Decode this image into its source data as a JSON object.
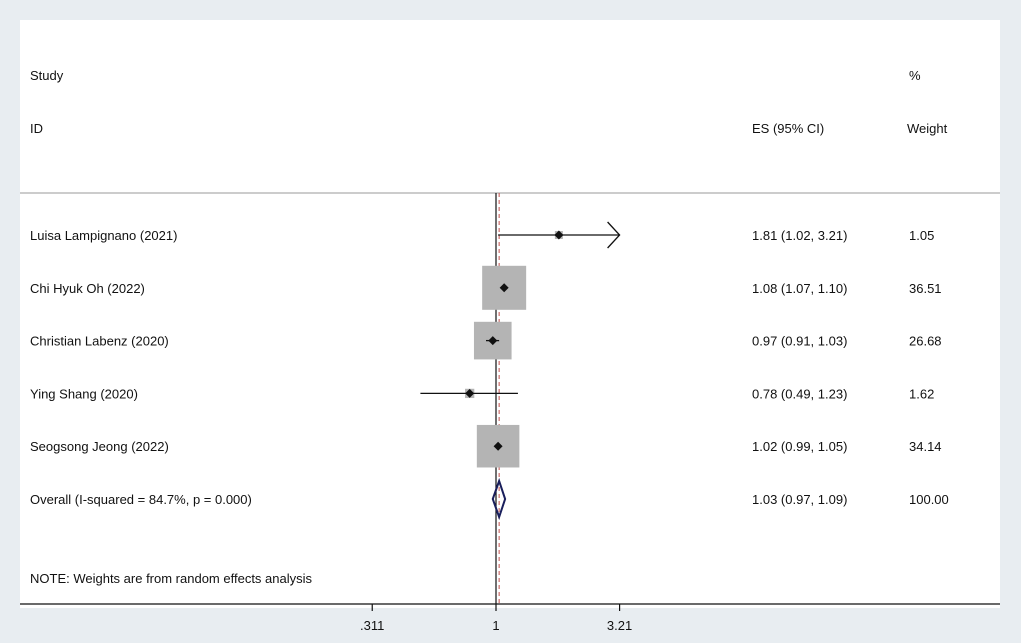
{
  "header": {
    "study_label": "Study",
    "id_label": "ID",
    "es_label": "ES (95% CI)",
    "pct_label": "%",
    "weight_label": "Weight"
  },
  "note": "NOTE: Weights are from random effects analysis",
  "chart_data": {
    "type": "forest",
    "x_scale": "log",
    "xticks": [
      ".311",
      "1",
      "3.21"
    ],
    "xtick_values": [
      0.311,
      1,
      3.21
    ],
    "null_value": 1,
    "overall_line": 1.03,
    "studies": [
      {
        "label": "Luisa Lampignano (2021)",
        "es": 1.81,
        "lo": 1.02,
        "hi": 3.21,
        "ci_text": "1.81 (1.02, 3.21)",
        "weight": 1.05,
        "weight_text": "1.05",
        "arrow": true
      },
      {
        "label": "Chi Hyuk Oh (2022)",
        "es": 1.08,
        "lo": 1.07,
        "hi": 1.1,
        "ci_text": "1.08 (1.07, 1.10)",
        "weight": 36.51,
        "weight_text": "36.51",
        "arrow": false
      },
      {
        "label": "Christian Labenz (2020)",
        "es": 0.97,
        "lo": 0.91,
        "hi": 1.03,
        "ci_text": "0.97 (0.91, 1.03)",
        "weight": 26.68,
        "weight_text": "26.68",
        "arrow": false
      },
      {
        "label": "Ying Shang (2020)",
        "es": 0.78,
        "lo": 0.49,
        "hi": 1.23,
        "ci_text": "0.78 (0.49, 1.23)",
        "weight": 1.62,
        "weight_text": "1.62",
        "arrow": false
      },
      {
        "label": "Seogsong Jeong (2022)",
        "es": 1.02,
        "lo": 0.99,
        "hi": 1.05,
        "ci_text": "1.02 (0.99, 1.05)",
        "weight": 34.14,
        "weight_text": "34.14",
        "arrow": false
      }
    ],
    "overall": {
      "label": "Overall  (I-squared = 84.7%, p = 0.000)",
      "es": 1.03,
      "lo": 0.97,
      "hi": 1.09,
      "ci_text": "1.03 (0.97, 1.09)",
      "weight_text": "100.00"
    },
    "colors": {
      "box": "#b4b4b4",
      "diamond": "#1a1f5c",
      "overall_line": "#c0504d",
      "line": "#111111"
    }
  }
}
